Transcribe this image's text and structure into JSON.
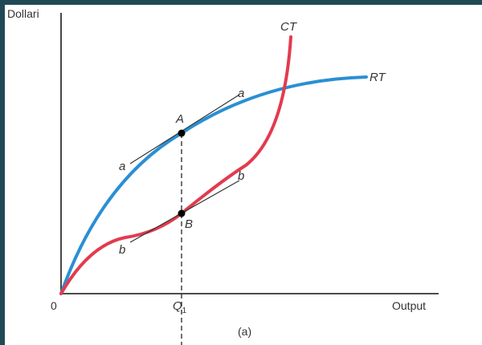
{
  "diagram": {
    "y_axis_label": "Dollari",
    "x_axis_label": "Output",
    "origin_label": "0",
    "q1_label": "Q",
    "q1_subscript": "1",
    "caption": "(a)",
    "curve_rt_label": "RT",
    "curve_ct_label": "CT",
    "point_a_label": "A",
    "point_b_label": "B",
    "tangent_a_label": "a",
    "tangent_b_label": "b",
    "colors": {
      "rt": "#2a8fd4",
      "ct": "#e23b4e",
      "axes": "#333333",
      "points": "#000000"
    }
  }
}
